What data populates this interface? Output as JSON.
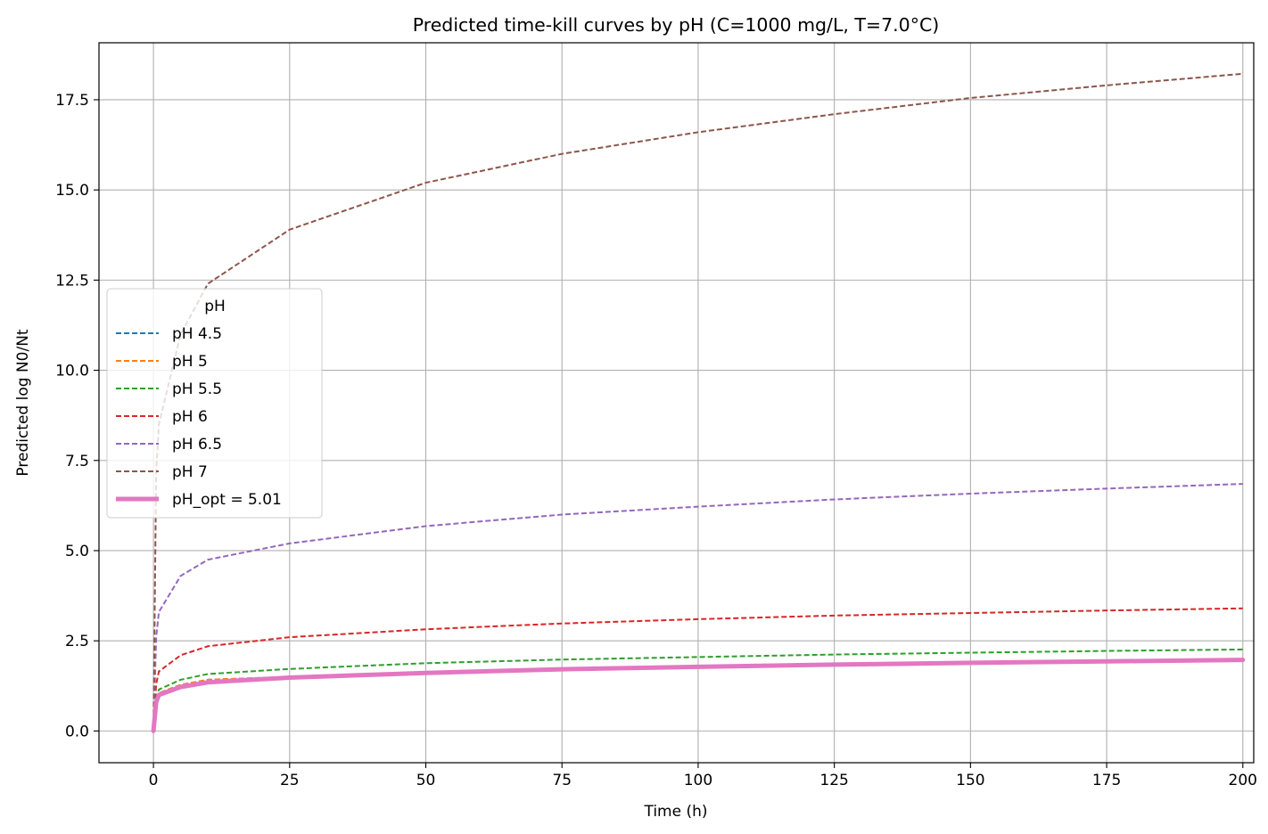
{
  "chart_data": {
    "type": "line",
    "title": "Predicted time-kill curves by pH (C=1000 mg/L, T=7.0°C)",
    "xlabel": "Time (h)",
    "ylabel": "Predicted log N0/Nt",
    "xlim": [
      -10,
      202
    ],
    "ylim": [
      -0.88,
      19.08
    ],
    "x_ticks": [
      0,
      25,
      50,
      75,
      100,
      125,
      150,
      175,
      200
    ],
    "y_ticks": [
      0.0,
      2.5,
      5.0,
      7.5,
      10.0,
      12.5,
      15.0,
      17.5
    ],
    "y_tick_labels": [
      "0.0",
      "2.5",
      "5.0",
      "7.5",
      "10.0",
      "12.5",
      "15.0",
      "17.5"
    ],
    "grid": true,
    "legend_title": "pH",
    "legend_position": "center-left",
    "x": [
      0,
      0.5,
      1,
      5,
      10,
      25,
      50,
      75,
      100,
      125,
      150,
      175,
      200
    ],
    "series": [
      {
        "name": "pH 4.5",
        "color": "#1f77b4",
        "style": "dashed",
        "values": [
          0,
          0.8,
          1.05,
          1.28,
          1.42,
          1.5,
          1.62,
          1.71,
          1.79,
          1.85,
          1.9,
          1.94,
          1.98
        ]
      },
      {
        "name": "pH 5",
        "color": "#ff7f0e",
        "style": "dashed",
        "values": [
          0,
          0.8,
          1.05,
          1.28,
          1.42,
          1.5,
          1.62,
          1.71,
          1.79,
          1.85,
          1.9,
          1.94,
          1.98
        ]
      },
      {
        "name": "pH 5.5",
        "color": "#2ca02c",
        "style": "dashed",
        "values": [
          0,
          0.9,
          1.15,
          1.42,
          1.58,
          1.72,
          1.88,
          1.98,
          2.05,
          2.12,
          2.17,
          2.22,
          2.26
        ]
      },
      {
        "name": "pH 6",
        "color": "#d62728",
        "style": "dashed",
        "values": [
          0,
          1.3,
          1.65,
          2.1,
          2.35,
          2.6,
          2.82,
          2.98,
          3.1,
          3.2,
          3.27,
          3.34,
          3.4
        ]
      },
      {
        "name": "pH 6.5",
        "color": "#9467bd",
        "style": "dashed",
        "values": [
          0,
          2.6,
          3.3,
          4.3,
          4.75,
          5.2,
          5.68,
          6.0,
          6.22,
          6.42,
          6.58,
          6.72,
          6.85
        ]
      },
      {
        "name": "pH 7",
        "color": "#8c564b",
        "style": "dashed",
        "values": [
          0,
          7.2,
          8.5,
          11.0,
          12.4,
          13.9,
          15.2,
          16.0,
          16.6,
          17.1,
          17.55,
          17.9,
          18.22
        ]
      },
      {
        "name": "pH_opt = 5.01",
        "color": "#e377c2",
        "style": "solid-thick",
        "values": [
          0,
          0.8,
          1.0,
          1.22,
          1.35,
          1.48,
          1.61,
          1.71,
          1.78,
          1.84,
          1.89,
          1.93,
          1.97
        ]
      }
    ]
  }
}
